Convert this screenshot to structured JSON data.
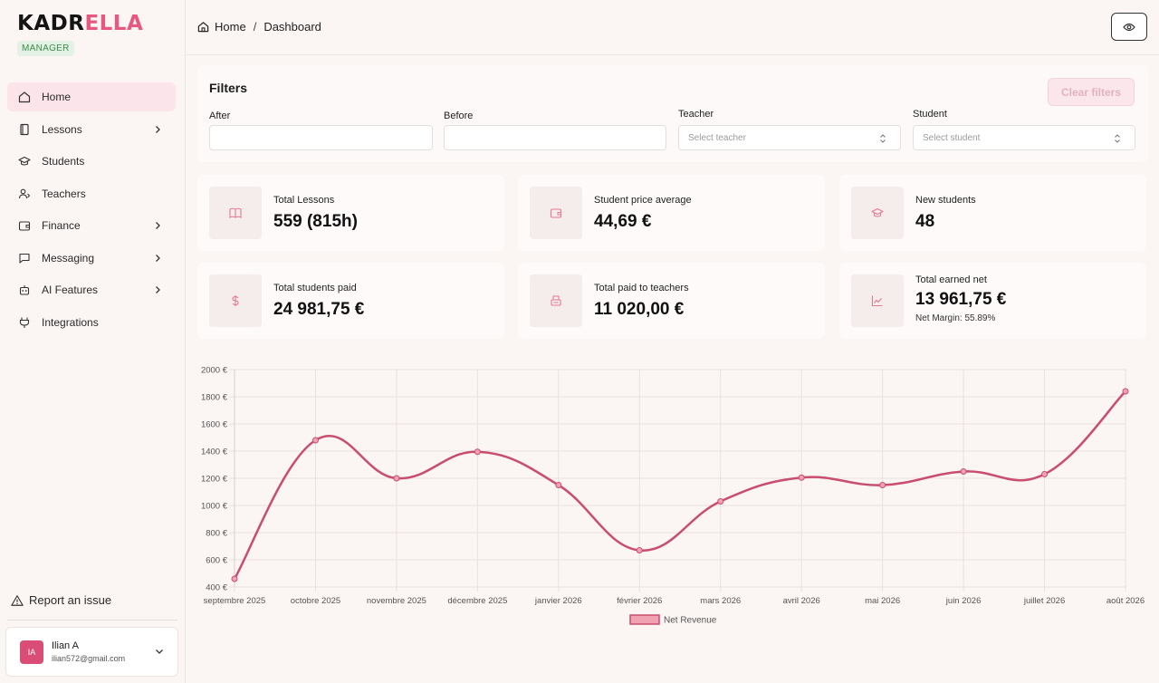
{
  "brand": {
    "part1": "KADR",
    "part2": "ELLA",
    "role": "MANAGER"
  },
  "sidebar": {
    "items": [
      {
        "label": "Home",
        "icon": "home-icon",
        "active": true,
        "has_submenu": false
      },
      {
        "label": "Lessons",
        "icon": "book-icon",
        "active": false,
        "has_submenu": true
      },
      {
        "label": "Students",
        "icon": "graduation-cap-icon",
        "active": false,
        "has_submenu": false
      },
      {
        "label": "Teachers",
        "icon": "user-tie-icon",
        "active": false,
        "has_submenu": false
      },
      {
        "label": "Finance",
        "icon": "wallet-icon",
        "active": false,
        "has_submenu": true
      },
      {
        "label": "Messaging",
        "icon": "message-icon",
        "active": false,
        "has_submenu": true
      },
      {
        "label": "AI Features",
        "icon": "robot-icon",
        "active": false,
        "has_submenu": true
      },
      {
        "label": "Integrations",
        "icon": "plug-icon",
        "active": false,
        "has_submenu": false
      }
    ],
    "report_label": "Report an issue",
    "user": {
      "initials": "IA",
      "name": "Ilian A",
      "email": "ilian572@gmail.com"
    }
  },
  "header": {
    "breadcrumb": [
      "Home",
      "Dashboard"
    ]
  },
  "filters": {
    "title": "Filters",
    "clear_label": "Clear filters",
    "after_label": "After",
    "after_value": "",
    "before_label": "Before",
    "before_value": "",
    "teacher_label": "Teacher",
    "teacher_placeholder": "Select teacher",
    "student_label": "Student",
    "student_placeholder": "Select student"
  },
  "stats": {
    "total_lessons": {
      "label": "Total Lessons",
      "value": "559 (815h)"
    },
    "student_price_avg": {
      "label": "Student price average",
      "value": "44,69 €"
    },
    "new_students": {
      "label": "New students",
      "value": "48"
    },
    "total_students_paid": {
      "label": "Total students paid",
      "value": "24 981,75 €"
    },
    "total_paid_teachers": {
      "label": "Total paid to teachers",
      "value": "11 020,00 €"
    },
    "total_earned_net": {
      "label": "Total earned net",
      "value": "13 961,75 €",
      "sub": "Net Margin: 55.89%"
    }
  },
  "colors": {
    "accent": "#e8577f",
    "line": "#c94d6e",
    "legend_fill": "#f0a2b3"
  },
  "chart_data": {
    "type": "line",
    "categories": [
      "septembre 2025",
      "octobre 2025",
      "novembre 2025",
      "décembre 2025",
      "janvier 2026",
      "février 2026",
      "mars 2026",
      "avril 2026",
      "mai 2026",
      "juin 2026",
      "juillet 2026",
      "août 2026"
    ],
    "series": [
      {
        "name": "Net Revenue",
        "values": [
          460,
          1480,
          1200,
          1395,
          1150,
          670,
          1030,
          1205,
          1150,
          1250,
          1230,
          1840
        ]
      }
    ],
    "yticks": [
      "2000 €",
      "1800 €",
      "1600 €",
      "1400 €",
      "1200 €",
      "1000 €",
      "800 €",
      "600 €",
      "400 €"
    ],
    "ylim": [
      400,
      2000
    ],
    "grid": true,
    "legend": "bottom-center"
  }
}
